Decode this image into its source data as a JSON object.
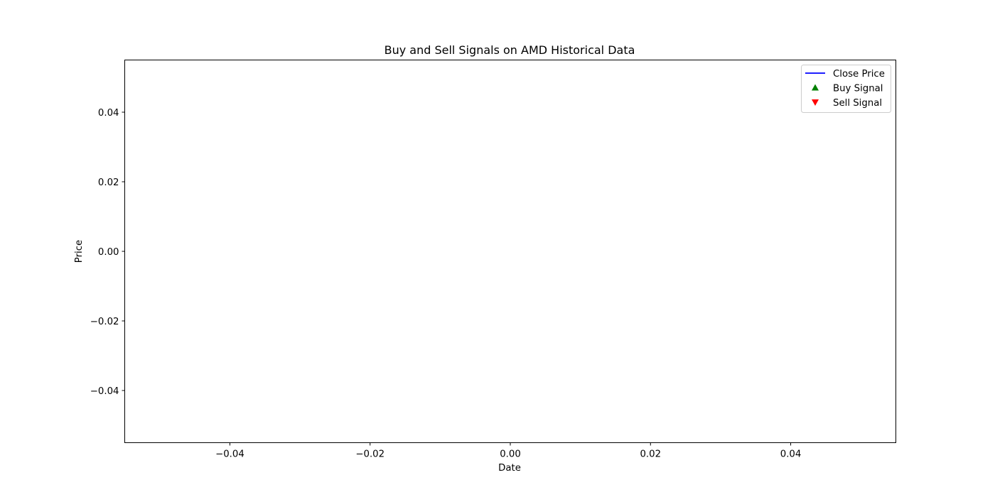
{
  "chart_data": {
    "type": "line",
    "title": "Buy and Sell Signals on AMD Historical Data",
    "xlabel": "Date",
    "ylabel": "Price",
    "xlim": [
      -0.055,
      0.055
    ],
    "ylim": [
      -0.055,
      0.055
    ],
    "x_ticks": [
      {
        "value": -0.04,
        "label": "−0.04"
      },
      {
        "value": -0.02,
        "label": "−0.02"
      },
      {
        "value": 0.0,
        "label": "0.00"
      },
      {
        "value": 0.02,
        "label": "0.02"
      },
      {
        "value": 0.04,
        "label": "0.04"
      }
    ],
    "y_ticks": [
      {
        "value": 0.04,
        "label": "0.04"
      },
      {
        "value": 0.02,
        "label": "0.02"
      },
      {
        "value": 0.0,
        "label": "0.00"
      },
      {
        "value": -0.02,
        "label": "−0.02"
      },
      {
        "value": -0.04,
        "label": "−0.04"
      }
    ],
    "grid": false,
    "legend": {
      "position": "top-right",
      "entries": [
        {
          "label": "Close Price",
          "marker": "line",
          "color": "#0000ff"
        },
        {
          "label": "Buy Signal",
          "marker": "triangle-up",
          "color": "#008000"
        },
        {
          "label": "Sell Signal",
          "marker": "triangle-down",
          "color": "#ff0000"
        }
      ]
    },
    "series": [
      {
        "name": "Close Price",
        "x": [],
        "y": []
      },
      {
        "name": "Buy Signal",
        "x": [],
        "y": []
      },
      {
        "name": "Sell Signal",
        "x": [],
        "y": []
      }
    ]
  }
}
